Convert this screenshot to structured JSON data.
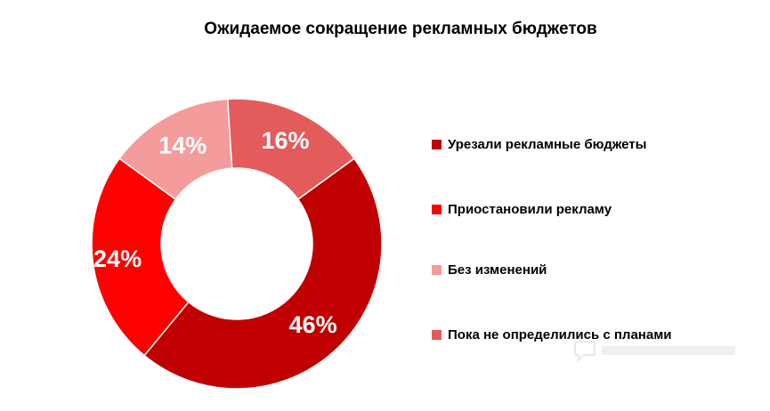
{
  "chart_data": {
    "type": "pie",
    "title": "Ожидаемое сокращение рекламных бюджетов",
    "unit": "%",
    "donut": true,
    "slices": [
      {
        "label": "Урезали рекламные бюджеты",
        "value": 46,
        "display": "46%",
        "color": "#C00000"
      },
      {
        "label": "Приостановили рекламу",
        "value": 24,
        "display": "24%",
        "color": "#FF0000"
      },
      {
        "label": "Без изменений",
        "value": 14,
        "display": "14%",
        "color": "#F49B9B"
      },
      {
        "label": "Пока не определились с планами",
        "value": 16,
        "display": "16%",
        "color": "#E35B5B"
      }
    ],
    "legend_position": "right"
  }
}
